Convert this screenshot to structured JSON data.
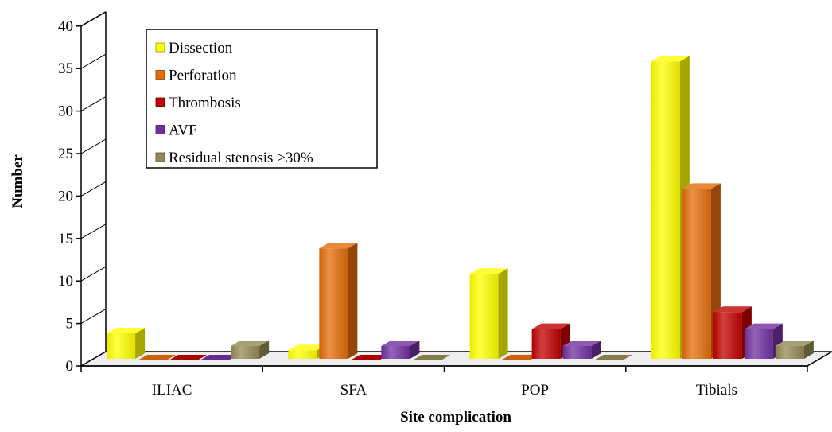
{
  "chart_data": {
    "type": "bar",
    "title": "",
    "xlabel": "Site complication",
    "ylabel": "Number",
    "ylim": [
      0,
      40
    ],
    "yticks": [
      0,
      5,
      10,
      15,
      20,
      25,
      30,
      35,
      40
    ],
    "categories": [
      "ILIAC",
      "SFA",
      "POP",
      "Tibials"
    ],
    "series": [
      {
        "name": "Dissection",
        "values": [
          3,
          1,
          10,
          35
        ],
        "color": "#ffff00"
      },
      {
        "name": "Perforation",
        "values": [
          0,
          13,
          0,
          20
        ],
        "color": "#e36c09"
      },
      {
        "name": "Thrombosis",
        "values": [
          0,
          0,
          3.5,
          5.5
        ],
        "color": "#c00000"
      },
      {
        "name": "AVF",
        "values": [
          0,
          1.5,
          1.5,
          3.5
        ],
        "color": "#7030a0"
      },
      {
        "name": "Residual stenosis >30%",
        "values": [
          1.5,
          0,
          0,
          1.5
        ],
        "color": "#948a54"
      }
    ],
    "legend_position": "top-left",
    "grid": false,
    "style": "3d-column"
  }
}
